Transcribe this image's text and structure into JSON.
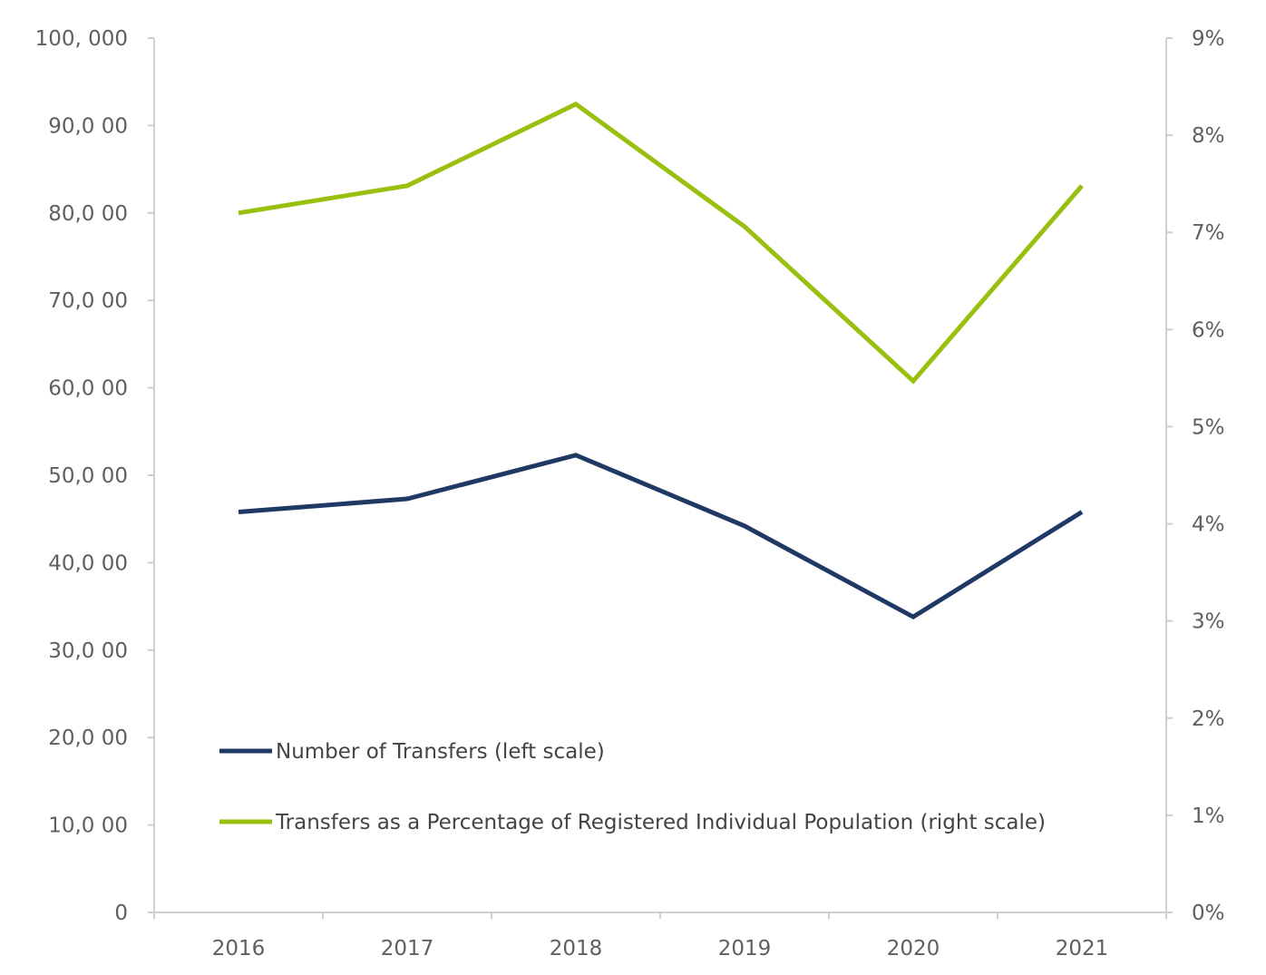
{
  "chart_data": {
    "type": "line",
    "title": "",
    "xlabel": "",
    "ylabel": "",
    "categories": [
      "2016",
      "2017",
      "2018",
      "2019",
      "2020",
      "2021"
    ],
    "y_left": {
      "min": 0,
      "max": 100000,
      "ticks": [
        0,
        10000,
        20000,
        30000,
        40000,
        50000,
        60000,
        70000,
        80000,
        90000,
        100000
      ],
      "tick_labels": [
        "0",
        "10,0 00",
        "20,0 00",
        "30,0 00",
        "40,0 00",
        "50,0 00",
        "60,0 00",
        "70,0 00",
        "80,0 00",
        "90,0 00",
        "100, 000"
      ]
    },
    "y_right": {
      "min": 0,
      "max": 0.09,
      "ticks": [
        0,
        0.01,
        0.02,
        0.03,
        0.04,
        0.05,
        0.06,
        0.07,
        0.08,
        0.09
      ],
      "tick_labels": [
        "0%",
        "1%",
        "2%",
        "3%",
        "4%",
        "5%",
        "6%",
        "7%",
        "8%",
        "9%"
      ]
    },
    "series": [
      {
        "name": "Number of Transfers (left scale)",
        "axis": "left",
        "color": "#1f3864",
        "values": [
          45800,
          47300,
          52300,
          44200,
          33800,
          45800
        ]
      },
      {
        "name": "Transfers as a Percentage of Registered Individual Population (right scale)",
        "axis": "right",
        "color": "#99bf0f",
        "values": [
          0.072,
          0.0748,
          0.0832,
          0.0706,
          0.0547,
          0.0748
        ]
      }
    ],
    "legend": "lower-left inside plot"
  }
}
